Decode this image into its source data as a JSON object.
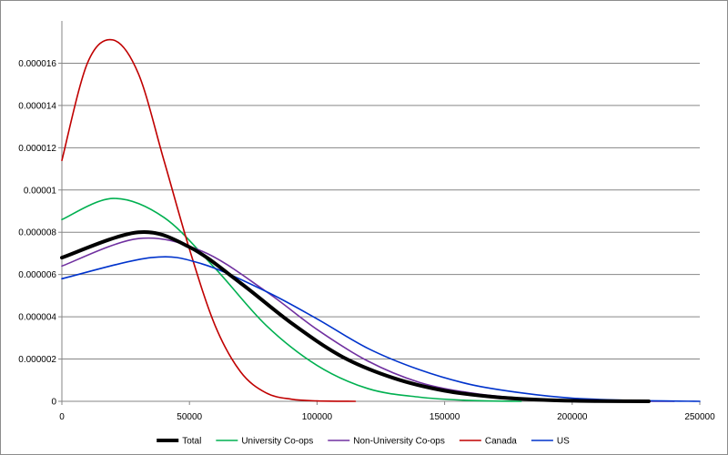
{
  "chart_data": {
    "type": "line",
    "title": "",
    "xlabel": "",
    "ylabel": "",
    "xlim": [
      0,
      250000
    ],
    "ylim": [
      0,
      1.8e-05
    ],
    "x_ticks": [
      {
        "value": 0,
        "label": "0"
      },
      {
        "value": 50000,
        "label": "50000"
      },
      {
        "value": 100000,
        "label": "100000"
      },
      {
        "value": 150000,
        "label": "150000"
      },
      {
        "value": 200000,
        "label": "200000"
      },
      {
        "value": 250000,
        "label": "250000"
      }
    ],
    "y_ticks": [
      {
        "value": 0,
        "label": "0"
      },
      {
        "value": 2e-06,
        "label": "0.000002"
      },
      {
        "value": 4e-06,
        "label": "0.000004"
      },
      {
        "value": 6e-06,
        "label": "0.000006"
      },
      {
        "value": 8e-06,
        "label": "0.000008"
      },
      {
        "value": 1e-05,
        "label": "0.00001"
      },
      {
        "value": 1.2e-05,
        "label": "0.000012"
      },
      {
        "value": 1.4e-05,
        "label": "0.000014"
      },
      {
        "value": 1.6e-05,
        "label": "0.000016"
      }
    ],
    "grid": "horizontal",
    "legend_position": "bottom",
    "series": [
      {
        "name": "University Co-ops",
        "color": "#00b050",
        "bold": false,
        "x": [
          0,
          20000,
          40000,
          60000,
          80000,
          100000,
          120000,
          140000,
          160000,
          180000
        ],
        "y": [
          8.6e-06,
          9.6e-06,
          8.7e-06,
          6.3e-06,
          3.6e-06,
          1.7e-06,
          6e-07,
          2e-07,
          4e-08,
          0
        ]
      },
      {
        "name": "Non-University Co-ops",
        "color": "#7030a0",
        "bold": false,
        "x": [
          0,
          30000,
          55000,
          80000,
          100000,
          120000,
          140000,
          160000,
          180000,
          200000,
          220000,
          240000
        ],
        "y": [
          6.4e-06,
          7.7e-06,
          7.1e-06,
          5.2e-06,
          3.4e-06,
          1.9e-06,
          9e-07,
          4e-07,
          1.5e-07,
          5e-08,
          1e-08,
          0
        ]
      },
      {
        "name": "Canada",
        "color": "#c00000",
        "bold": false,
        "x": [
          0,
          10000,
          20000,
          30000,
          40000,
          50000,
          60000,
          70000,
          80000,
          90000,
          100000,
          115000
        ],
        "y": [
          1.14e-05,
          1.6e-05,
          1.71e-05,
          1.55e-05,
          1.14e-05,
          7.2e-06,
          3.6e-06,
          1.4e-06,
          4e-07,
          1e-07,
          2e-08,
          0
        ]
      },
      {
        "name": "US",
        "color": "#0033cc",
        "bold": false,
        "x": [
          0,
          35000,
          55000,
          80000,
          100000,
          120000,
          140000,
          160000,
          180000,
          200000,
          225000,
          250000
        ],
        "y": [
          5.8e-06,
          6.8e-06,
          6.5e-06,
          5.2e-06,
          3.9e-06,
          2.5e-06,
          1.5e-06,
          8e-07,
          4e-07,
          1.5e-07,
          4e-08,
          0
        ]
      },
      {
        "name": "Total",
        "color": "#000000",
        "bold": true,
        "x": [
          0,
          30000,
          50000,
          70000,
          90000,
          110000,
          130000,
          150000,
          170000,
          190000,
          210000,
          230000
        ],
        "y": [
          6.8e-06,
          8e-06,
          7.3e-06,
          5.6e-06,
          3.7e-06,
          2.1e-06,
          1.1e-06,
          5e-07,
          2e-07,
          6e-08,
          1e-08,
          0
        ]
      }
    ],
    "legend": [
      "Total",
      "University Co-ops",
      "Non-University Co-ops",
      "Canada",
      "US"
    ]
  }
}
